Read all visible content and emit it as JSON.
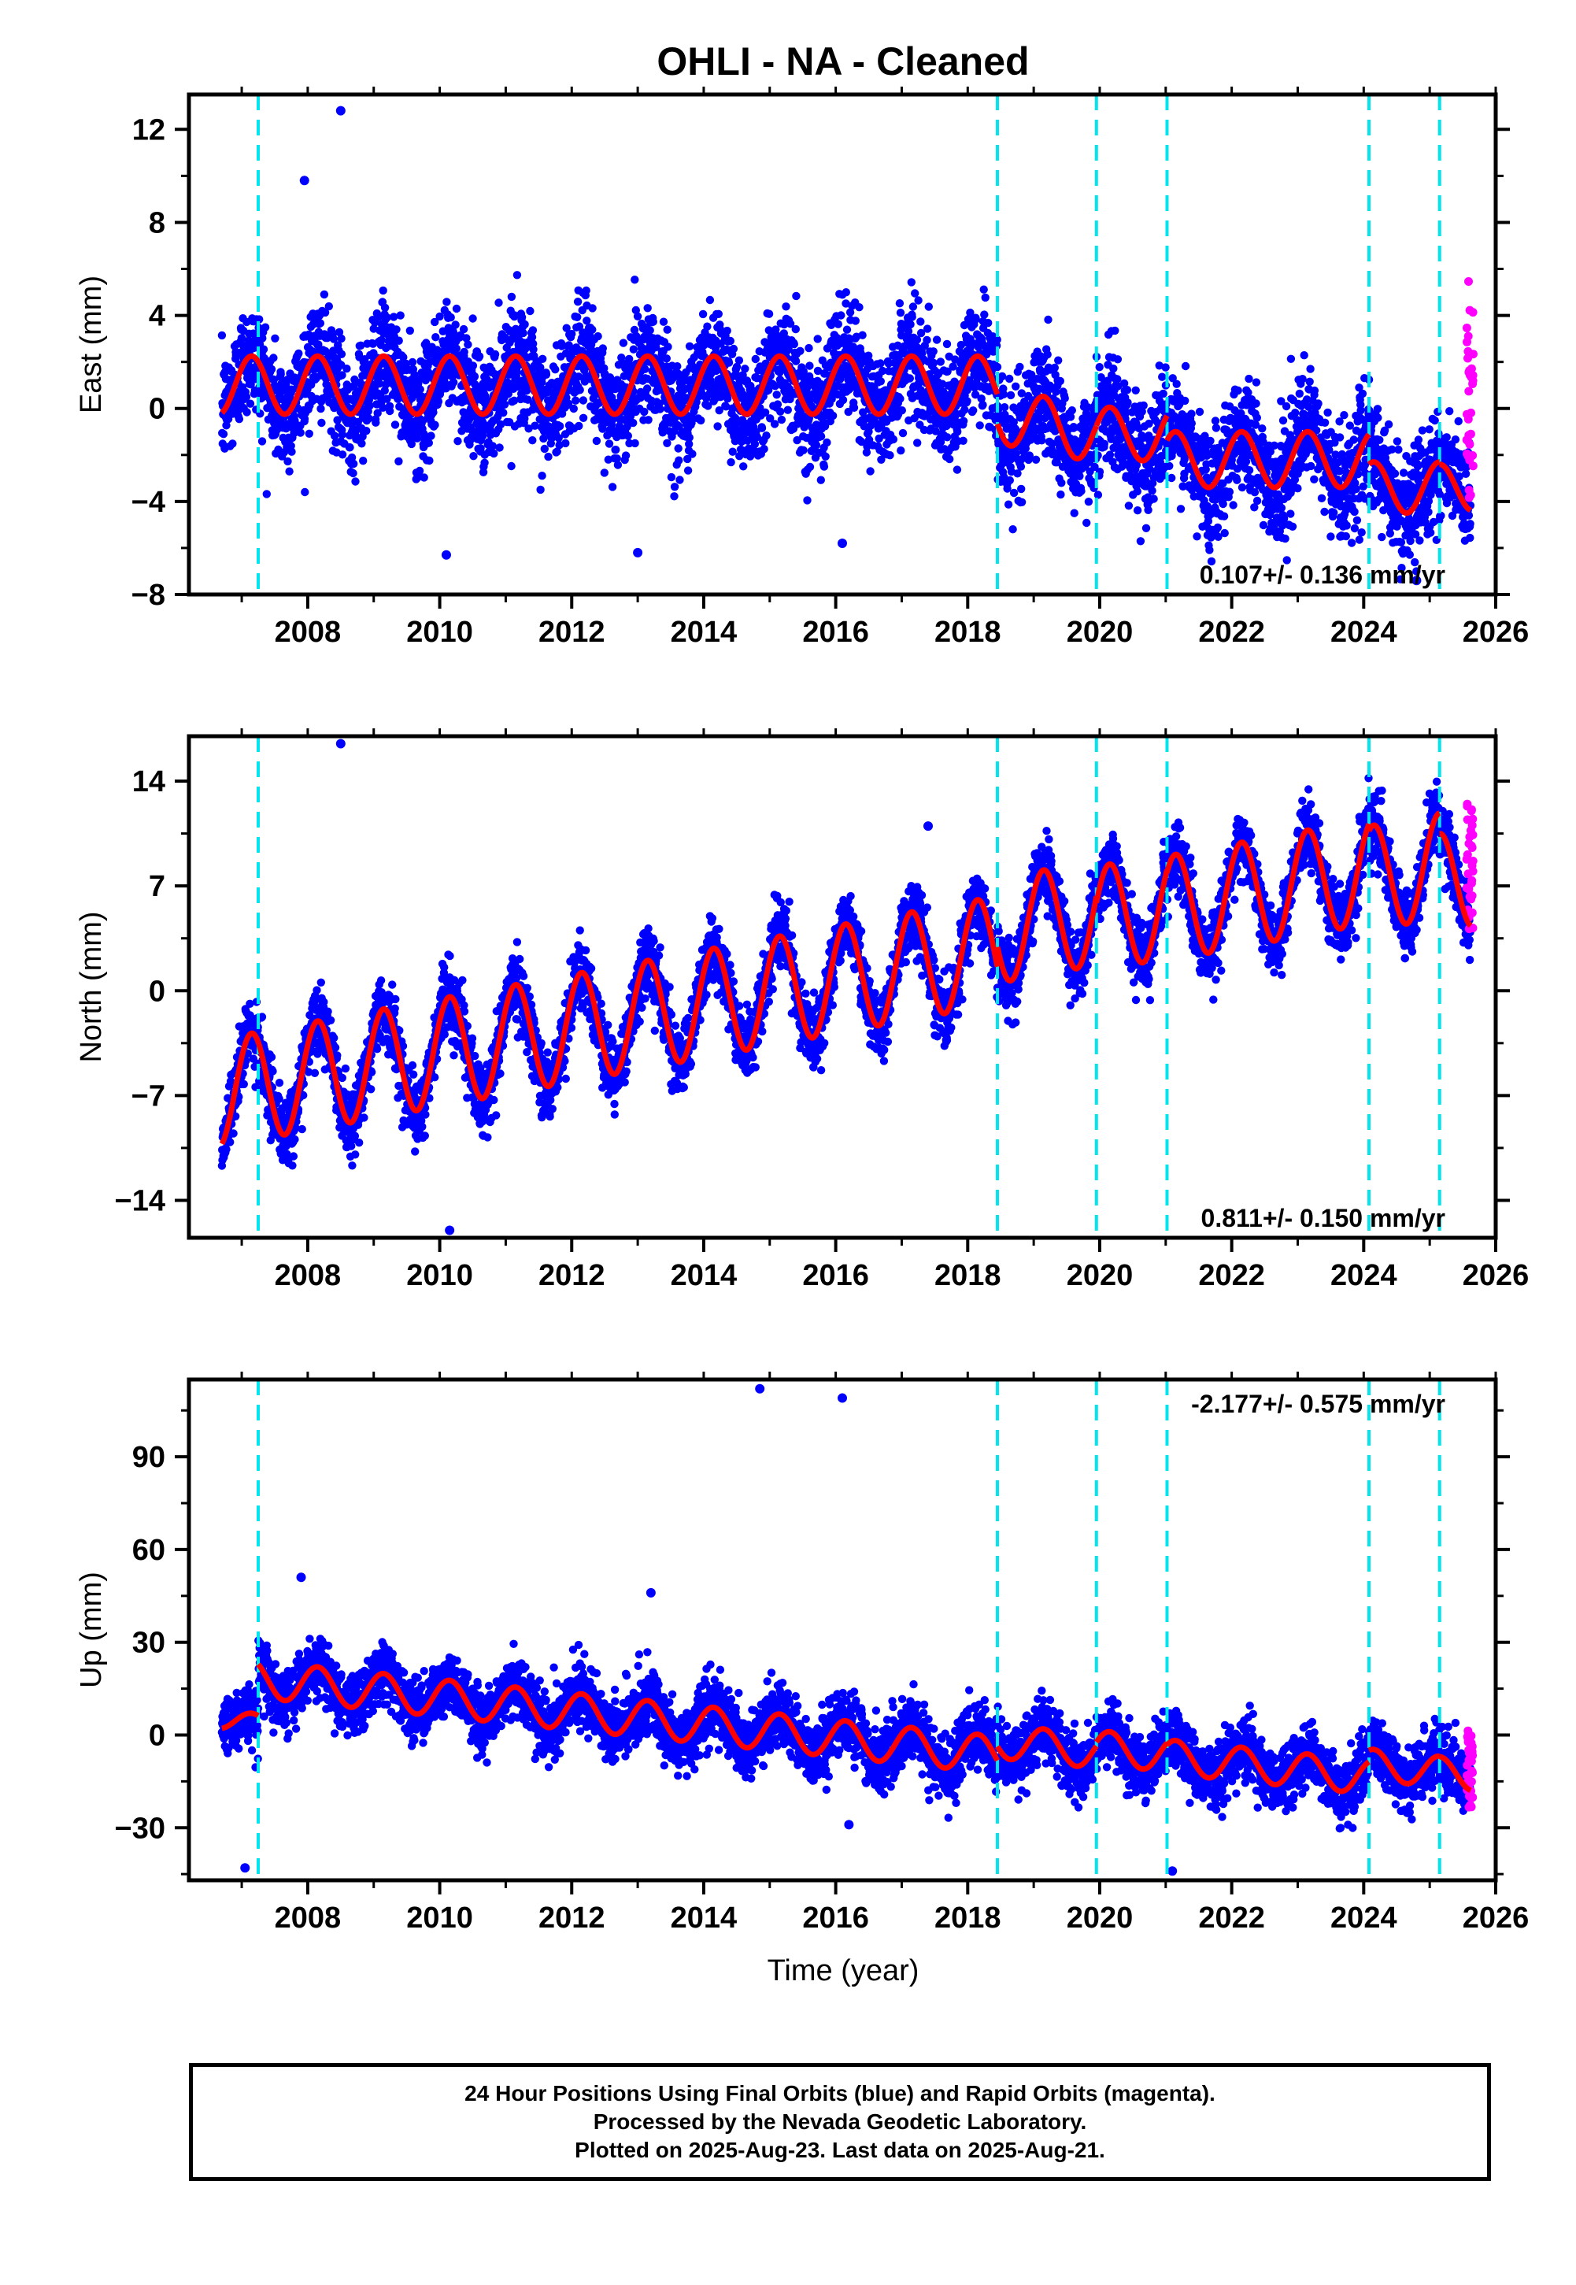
{
  "title": "OHLI  - NA - Cleaned",
  "xlabel": "Time (year)",
  "caption": {
    "line1": "24 Hour Positions Using Final Orbits (blue) and Rapid Orbits (magenta).",
    "line2": "Processed by the Nevada Geodetic Laboratory.",
    "line3": "Plotted on 2025-Aug-23. Last data on 2025-Aug-21."
  },
  "colors": {
    "final_orbits": "#0000ff",
    "rapid_orbits": "#ff00ff",
    "model": "#ff0000",
    "equipment_change": "#00e5ee",
    "frame": "#000000"
  },
  "equipment_change_years": [
    2007.25,
    2018.45,
    2019.95,
    2021.02,
    2024.08,
    2025.15
  ],
  "chart_data": [
    {
      "type": "scatter",
      "ylabel": "East (mm)",
      "xlim": [
        2006.2,
        2026.0
      ],
      "ylim": [
        -8,
        13.5
      ],
      "xticks": [
        2008,
        2010,
        2012,
        2014,
        2016,
        2018,
        2020,
        2022,
        2024,
        2026
      ],
      "yticks": [
        -8,
        -4,
        0,
        4,
        8,
        12
      ],
      "ytick_labels": [
        "−8",
        "−4",
        "0",
        "4",
        "8",
        "12"
      ],
      "rate": "0.107+/- 0.136 mm/yr",
      "rate_position": "bottom-right",
      "model_segments": [
        {
          "start": 2006.7,
          "end": 2018.45,
          "offset": 1.0,
          "slope": 0.0,
          "amplitude": 1.25
        },
        {
          "start": 2018.45,
          "end": 2019.95,
          "offset": -0.3,
          "slope": -0.55,
          "amplitude": 1.2
        },
        {
          "start": 2019.95,
          "end": 2021.02,
          "offset": -1.1,
          "slope": 0.0,
          "amplitude": 1.15
        },
        {
          "start": 2021.02,
          "end": 2024.08,
          "offset": -2.2,
          "slope": 0.0,
          "amplitude": 1.2
        },
        {
          "start": 2024.08,
          "end": 2025.15,
          "offset": -3.4,
          "slope": 0.0,
          "amplitude": 1.1
        },
        {
          "start": 2025.15,
          "end": 2025.62,
          "offset": -3.4,
          "slope": 0.0,
          "amplitude": 1.0
        }
      ],
      "scatter_sigma": 1.2,
      "outliers": [
        [
          2008.5,
          12.8
        ],
        [
          2007.95,
          9.8
        ],
        [
          2010.1,
          -6.3
        ],
        [
          2013.0,
          -6.2
        ],
        [
          2016.1,
          -5.8
        ],
        [
          2024.8,
          -7.4
        ]
      ],
      "rapid_range": [
        -4.4,
        5.5
      ]
    },
    {
      "type": "scatter",
      "ylabel": "North (mm)",
      "xlim": [
        2006.2,
        2026.0
      ],
      "ylim": [
        -16.5,
        17
      ],
      "xticks": [
        2008,
        2010,
        2012,
        2014,
        2016,
        2018,
        2020,
        2022,
        2024,
        2026
      ],
      "yticks": [
        -14,
        -7,
        0,
        7,
        14
      ],
      "ytick_labels": [
        "−14",
        "−7",
        "0",
        "7",
        "14"
      ],
      "rate": "0.811+/- 0.150 mm/yr",
      "rate_position": "bottom-right",
      "model_segments": [
        {
          "start": 2006.7,
          "end": 2018.45,
          "offset": -6.8,
          "slope": 0.81,
          "amplitude": 3.6
        },
        {
          "start": 2018.45,
          "end": 2019.95,
          "offset": 4.0,
          "slope": 0.81,
          "amplitude": 3.5
        },
        {
          "start": 2019.95,
          "end": 2021.02,
          "offset": 4.8,
          "slope": 0.81,
          "amplitude": 3.5
        },
        {
          "start": 2021.02,
          "end": 2024.08,
          "offset": 5.5,
          "slope": 0.81,
          "amplitude": 3.5
        },
        {
          "start": 2024.08,
          "end": 2025.15,
          "offset": 7.5,
          "slope": 0.81,
          "amplitude": 3.5
        },
        {
          "start": 2025.15,
          "end": 2025.62,
          "offset": 7.2,
          "slope": 0.81,
          "amplitude": 3.3
        }
      ],
      "scatter_sigma": 1.1,
      "outliers": [
        [
          2008.5,
          16.5
        ],
        [
          2010.15,
          -16.0
        ],
        [
          2017.4,
          11.0
        ]
      ],
      "rapid_range": [
        4.0,
        12.5
      ]
    },
    {
      "type": "scatter",
      "ylabel": "Up (mm)",
      "xlim": [
        2006.2,
        2026.0
      ],
      "ylim": [
        -47,
        115
      ],
      "xticks": [
        2008,
        2010,
        2012,
        2014,
        2016,
        2018,
        2020,
        2022,
        2024,
        2026
      ],
      "yticks": [
        -30,
        0,
        30,
        60,
        90
      ],
      "ytick_labels": [
        "−30",
        "0",
        "30",
        "60",
        "90"
      ],
      "rate": "-2.177+/- 0.575 mm/yr",
      "rate_position": "top-right",
      "model_segments": [
        {
          "start": 2006.7,
          "end": 2007.25,
          "offset": 5.0,
          "slope": -2.18,
          "amplitude": 3.0
        },
        {
          "start": 2007.25,
          "end": 2018.45,
          "offset": 18.0,
          "slope": -2.18,
          "amplitude": 6.0
        },
        {
          "start": 2018.45,
          "end": 2019.95,
          "offset": -2.0,
          "slope": -2.18,
          "amplitude": 5.5
        },
        {
          "start": 2019.95,
          "end": 2021.02,
          "offset": -4.0,
          "slope": -2.18,
          "amplitude": 5.5
        },
        {
          "start": 2021.02,
          "end": 2024.08,
          "offset": -7.0,
          "slope": -2.18,
          "amplitude": 5.5
        },
        {
          "start": 2024.08,
          "end": 2025.15,
          "offset": -9.5,
          "slope": -2.18,
          "amplitude": 5.0
        },
        {
          "start": 2025.15,
          "end": 2025.62,
          "offset": -12.0,
          "slope": -2.18,
          "amplitude": 5.0
        }
      ],
      "scatter_sigma": 5.0,
      "outliers": [
        [
          2014.85,
          112
        ],
        [
          2016.1,
          109
        ],
        [
          2007.9,
          51
        ],
        [
          2013.2,
          46
        ],
        [
          2007.05,
          -43
        ],
        [
          2021.1,
          -44
        ],
        [
          2016.2,
          -29
        ]
      ],
      "rapid_range": [
        -24,
        2
      ]
    }
  ]
}
